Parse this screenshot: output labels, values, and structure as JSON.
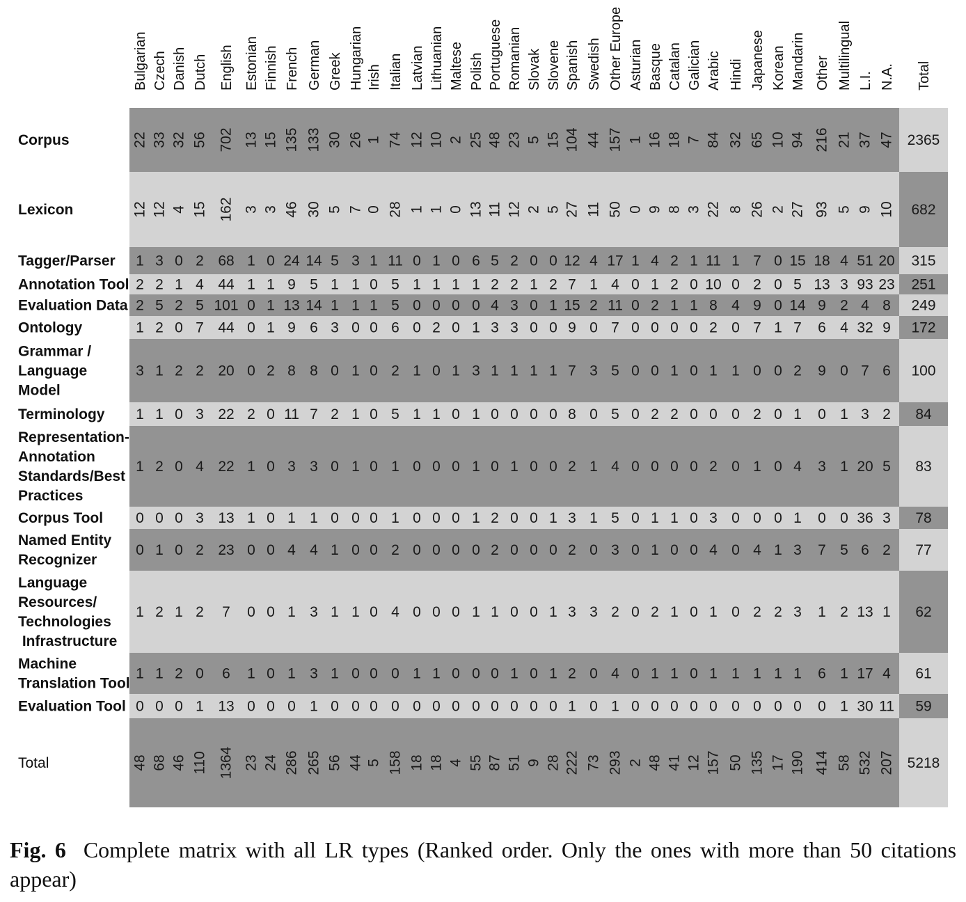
{
  "caption": {
    "label": "Fig. 6",
    "text": "Complete matrix with all LR types (Ranked order. Only the ones with more than 50 citations appear)"
  },
  "colors": {
    "band_dark": "#939393",
    "band_light": "#d3d3d3",
    "total_dark": "#939393",
    "total_light": "#d3d3d3"
  },
  "chart_data": {
    "type": "table",
    "columns": [
      "Bulgarian",
      "Czech",
      "Danish",
      "Dutch",
      "English",
      "Estonian",
      "Finnish",
      "French",
      "German",
      "Greek",
      "Hungarian",
      "Irish",
      "Italian",
      "Latvian",
      "Lithuanian",
      "Maltese",
      "Polish",
      "Portuguese",
      "Romanian",
      "Slovak",
      "Slovene",
      "Spanish",
      "Swedish",
      "Other Europe",
      "Asturian",
      "Basque",
      "Catalan",
      "Galician",
      "Arabic",
      "Hindi",
      "Japanese",
      "Korean",
      "Mandarin",
      "Other",
      "Multilingual",
      "L.I.",
      "N.A."
    ],
    "total_header": "Total",
    "rows": [
      {
        "label": [
          "Corpus"
        ],
        "values": [
          22,
          33,
          32,
          56,
          702,
          13,
          15,
          135,
          133,
          30,
          26,
          1,
          74,
          12,
          10,
          2,
          25,
          48,
          23,
          5,
          15,
          104,
          44,
          157,
          1,
          16,
          18,
          7,
          84,
          32,
          65,
          10,
          94,
          216,
          21,
          37,
          47
        ],
        "total": 2365
      },
      {
        "label": [
          "Lexicon"
        ],
        "values": [
          12,
          12,
          4,
          15,
          162,
          3,
          3,
          46,
          30,
          5,
          7,
          0,
          28,
          1,
          1,
          0,
          13,
          11,
          12,
          2,
          5,
          27,
          11,
          50,
          0,
          9,
          8,
          3,
          22,
          8,
          26,
          2,
          27,
          93,
          5,
          9,
          10
        ],
        "total": 682
      },
      {
        "label": [
          "Tagger/Parser"
        ],
        "values": [
          1,
          3,
          0,
          2,
          68,
          1,
          0,
          24,
          14,
          5,
          3,
          1,
          11,
          0,
          1,
          0,
          6,
          5,
          2,
          0,
          0,
          12,
          4,
          17,
          1,
          4,
          2,
          1,
          11,
          1,
          7,
          0,
          15,
          18,
          4,
          51,
          20
        ],
        "total": 315
      },
      {
        "label": [
          "Annotation Tool"
        ],
        "values": [
          2,
          2,
          1,
          4,
          44,
          1,
          1,
          9,
          5,
          1,
          1,
          0,
          5,
          1,
          1,
          1,
          1,
          2,
          2,
          1,
          2,
          7,
          1,
          4,
          0,
          1,
          2,
          0,
          10,
          0,
          2,
          0,
          5,
          13,
          3,
          93,
          23
        ],
        "total": 251
      },
      {
        "label": [
          "Evaluation Data"
        ],
        "values": [
          2,
          5,
          2,
          5,
          101,
          0,
          1,
          13,
          14,
          1,
          1,
          1,
          5,
          0,
          0,
          0,
          0,
          4,
          3,
          0,
          1,
          15,
          2,
          11,
          0,
          2,
          1,
          1,
          8,
          4,
          9,
          0,
          14,
          9,
          2,
          4,
          8
        ],
        "total": 249
      },
      {
        "label": [
          "Ontology"
        ],
        "values": [
          1,
          2,
          0,
          7,
          44,
          0,
          1,
          9,
          6,
          3,
          0,
          0,
          6,
          0,
          2,
          0,
          1,
          3,
          3,
          0,
          0,
          9,
          0,
          7,
          0,
          0,
          0,
          0,
          2,
          0,
          7,
          1,
          7,
          6,
          4,
          32,
          9
        ],
        "total": 172
      },
      {
        "label": [
          "Grammar /",
          "Language",
          "Model"
        ],
        "values": [
          3,
          1,
          2,
          2,
          20,
          0,
          2,
          8,
          8,
          0,
          1,
          0,
          2,
          1,
          0,
          1,
          3,
          1,
          1,
          1,
          1,
          7,
          3,
          5,
          0,
          0,
          1,
          0,
          1,
          1,
          0,
          0,
          2,
          9,
          0,
          7,
          6
        ],
        "total": 100
      },
      {
        "label": [
          "Terminology"
        ],
        "values": [
          1,
          1,
          0,
          3,
          22,
          2,
          0,
          11,
          7,
          2,
          1,
          0,
          5,
          1,
          1,
          0,
          1,
          0,
          0,
          0,
          0,
          8,
          0,
          5,
          0,
          2,
          2,
          0,
          0,
          0,
          2,
          0,
          1,
          0,
          1,
          3,
          2
        ],
        "total": 84
      },
      {
        "label": [
          "Representation-",
          "Annotation",
          "Standards/Best",
          "Practices"
        ],
        "values": [
          1,
          2,
          0,
          4,
          22,
          1,
          0,
          3,
          3,
          0,
          1,
          0,
          1,
          0,
          0,
          0,
          1,
          0,
          1,
          0,
          0,
          2,
          1,
          4,
          0,
          0,
          0,
          0,
          2,
          0,
          1,
          0,
          4,
          3,
          1,
          20,
          5
        ],
        "total": 83
      },
      {
        "label": [
          "Corpus Tool"
        ],
        "values": [
          0,
          0,
          0,
          3,
          13,
          1,
          0,
          1,
          1,
          0,
          0,
          0,
          1,
          0,
          0,
          0,
          1,
          2,
          0,
          0,
          1,
          3,
          1,
          5,
          0,
          1,
          1,
          0,
          3,
          0,
          0,
          0,
          1,
          0,
          0,
          36,
          3
        ],
        "total": 78
      },
      {
        "label": [
          "Named Entity",
          "Recognizer"
        ],
        "values": [
          0,
          1,
          0,
          2,
          23,
          0,
          0,
          4,
          4,
          1,
          0,
          0,
          2,
          0,
          0,
          0,
          0,
          2,
          0,
          0,
          0,
          2,
          0,
          3,
          0,
          1,
          0,
          0,
          4,
          0,
          4,
          1,
          3,
          7,
          5,
          6,
          2
        ],
        "total": 77
      },
      {
        "label": [
          "Language",
          "Resources/",
          "Technologies",
          " Infrastructure"
        ],
        "values": [
          1,
          2,
          1,
          2,
          7,
          0,
          0,
          1,
          3,
          1,
          1,
          0,
          4,
          0,
          0,
          0,
          1,
          1,
          0,
          0,
          1,
          3,
          3,
          2,
          0,
          2,
          1,
          0,
          1,
          0,
          2,
          2,
          3,
          1,
          2,
          13,
          1
        ],
        "total": 62
      },
      {
        "label": [
          "Machine",
          "Translation Tool"
        ],
        "values": [
          1,
          1,
          2,
          0,
          6,
          1,
          0,
          1,
          3,
          1,
          0,
          0,
          0,
          1,
          1,
          0,
          0,
          0,
          1,
          0,
          1,
          2,
          0,
          4,
          0,
          1,
          1,
          0,
          1,
          1,
          1,
          1,
          1,
          6,
          1,
          17,
          4
        ],
        "total": 61
      },
      {
        "label": [
          "Evaluation Tool"
        ],
        "values": [
          0,
          0,
          0,
          1,
          13,
          0,
          0,
          0,
          1,
          0,
          0,
          0,
          0,
          0,
          0,
          0,
          0,
          0,
          0,
          0,
          0,
          1,
          0,
          1,
          0,
          0,
          0,
          0,
          0,
          0,
          0,
          0,
          0,
          0,
          1,
          30,
          11
        ],
        "total": 59
      }
    ],
    "totals_row": {
      "label": "Total",
      "values": [
        48,
        68,
        46,
        110,
        1364,
        23,
        24,
        286,
        265,
        56,
        44,
        5,
        158,
        18,
        18,
        4,
        55,
        87,
        51,
        9,
        28,
        222,
        73,
        293,
        2,
        48,
        41,
        12,
        157,
        50,
        135,
        17,
        190,
        414,
        58,
        532,
        207
      ],
      "total": 5218
    }
  }
}
